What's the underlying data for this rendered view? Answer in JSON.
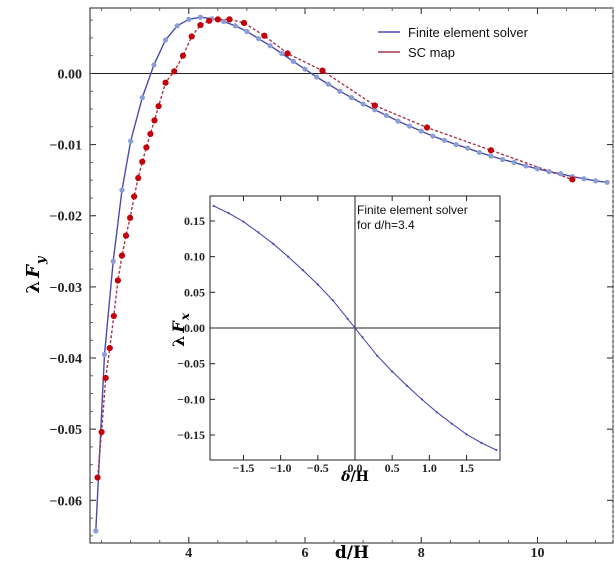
{
  "chart_data": [
    {
      "type": "line",
      "xlabel_base": "d/H",
      "ylabel": {
        "prefix": "λ",
        "var": "F",
        "sub": "y"
      },
      "xlim": [
        2.3,
        11.3
      ],
      "ylim": [
        -0.066,
        0.0092
      ],
      "xticks": [
        4,
        6,
        8,
        10
      ],
      "xtick_labels": [
        "4",
        "6",
        "8",
        "10"
      ],
      "yticks": [
        0.0,
        -0.01,
        -0.02,
        -0.03,
        -0.04,
        -0.05,
        -0.06
      ],
      "ytick_labels": [
        "0.00",
        "−0.01",
        "−0.02",
        "−0.03",
        "−0.04",
        "−0.05",
        "−0.06"
      ],
      "legend_placement": "top-right",
      "series": [
        {
          "name": "Finite element solver",
          "color": "#4a4ab0",
          "marker_color": "#8b9ed2",
          "x": [
            2.4,
            2.55,
            2.7,
            2.85,
            3.0,
            3.2,
            3.4,
            3.6,
            3.8,
            4.0,
            4.2,
            4.4,
            4.6,
            4.8,
            5.0,
            5.2,
            5.4,
            5.6,
            5.8,
            6.0,
            6.2,
            6.4,
            6.6,
            6.8,
            7.0,
            7.2,
            7.4,
            7.6,
            7.8,
            8.0,
            8.2,
            8.4,
            8.6,
            8.8,
            9.0,
            9.2,
            9.4,
            9.6,
            9.8,
            10.0,
            10.2,
            10.4,
            10.6,
            10.8,
            11.0,
            11.2
          ],
          "y": [
            -0.0643,
            -0.0395,
            -0.0264,
            -0.0164,
            -0.0095,
            -0.0034,
            0.0012,
            0.0047,
            0.0067,
            0.0076,
            0.0079,
            0.0077,
            0.0073,
            0.0067,
            0.0059,
            0.0049,
            0.0039,
            0.0028,
            0.0017,
            0.0006,
            -0.0005,
            -0.0015,
            -0.0025,
            -0.0034,
            -0.0043,
            -0.0051,
            -0.0059,
            -0.0067,
            -0.0074,
            -0.0081,
            -0.0088,
            -0.0094,
            -0.01,
            -0.0105,
            -0.0111,
            -0.0116,
            -0.0121,
            -0.0125,
            -0.013,
            -0.0134,
            -0.0138,
            -0.0141,
            -0.0145,
            -0.0148,
            -0.0151,
            -0.0153
          ]
        },
        {
          "name": "SC map",
          "color": "#a8364a",
          "marker_color": "#c4000a",
          "x": [
            2.43,
            2.5,
            2.57,
            2.64,
            2.71,
            2.78,
            2.85,
            2.92,
            2.99,
            3.06,
            3.13,
            3.2,
            3.27,
            3.34,
            3.41,
            3.48,
            3.6,
            3.75,
            3.9,
            4.05,
            4.2,
            4.35,
            4.5,
            4.7,
            4.95,
            5.3,
            5.7,
            6.3,
            7.2,
            8.1,
            9.2,
            10.6
          ],
          "y": [
            -0.0568,
            -0.0504,
            -0.0428,
            -0.0386,
            -0.0341,
            -0.0291,
            -0.0256,
            -0.0228,
            -0.0203,
            -0.0173,
            -0.0147,
            -0.0124,
            -0.0104,
            -0.0085,
            -0.0066,
            -0.0046,
            -0.0013,
            0.0003,
            0.0025,
            0.0052,
            0.0068,
            0.0074,
            0.0076,
            0.0076,
            0.0071,
            0.0053,
            0.0028,
            0.0004,
            -0.0045,
            -0.0076,
            -0.0108,
            -0.0149
          ]
        }
      ]
    },
    {
      "type": "line",
      "xlabel": {
        "var": "δ",
        "rest": "/H"
      },
      "ylabel": {
        "prefix": "λ",
        "var": "F",
        "sub": "x"
      },
      "xlim": [
        -1.95,
        1.95
      ],
      "ylim": [
        -0.185,
        0.185
      ],
      "xticks": [
        -1.5,
        -1.0,
        -0.5,
        0.0,
        0.5,
        1.0,
        1.5
      ],
      "xtick_labels": [
        "−1.5",
        "−1.0",
        "−0.5",
        "0.0",
        "0.5",
        "1.0",
        "1.5"
      ],
      "yticks": [
        0.15,
        0.1,
        0.05,
        0.0,
        -0.05,
        -0.1,
        -0.15
      ],
      "ytick_labels": [
        "0.15",
        "0.10",
        "0.05",
        "0.00",
        "−0.05",
        "−0.10",
        "−0.15"
      ],
      "annotation": [
        "Finite element solver",
        "for d/h=3.4"
      ],
      "series": [
        {
          "color": "#4a4ab0",
          "x": [
            -1.9,
            -1.7,
            -1.5,
            -1.3,
            -1.1,
            -0.9,
            -0.7,
            -0.5,
            -0.3,
            -0.1,
            0.1,
            0.3,
            0.5,
            0.7,
            0.9,
            1.1,
            1.3,
            1.5,
            1.7,
            1.9
          ],
          "y": [
            0.171,
            0.161,
            0.149,
            0.134,
            0.118,
            0.1,
            0.081,
            0.061,
            0.039,
            0.013,
            -0.013,
            -0.039,
            -0.061,
            -0.081,
            -0.1,
            -0.118,
            -0.134,
            -0.149,
            -0.161,
            -0.171
          ]
        }
      ]
    }
  ]
}
